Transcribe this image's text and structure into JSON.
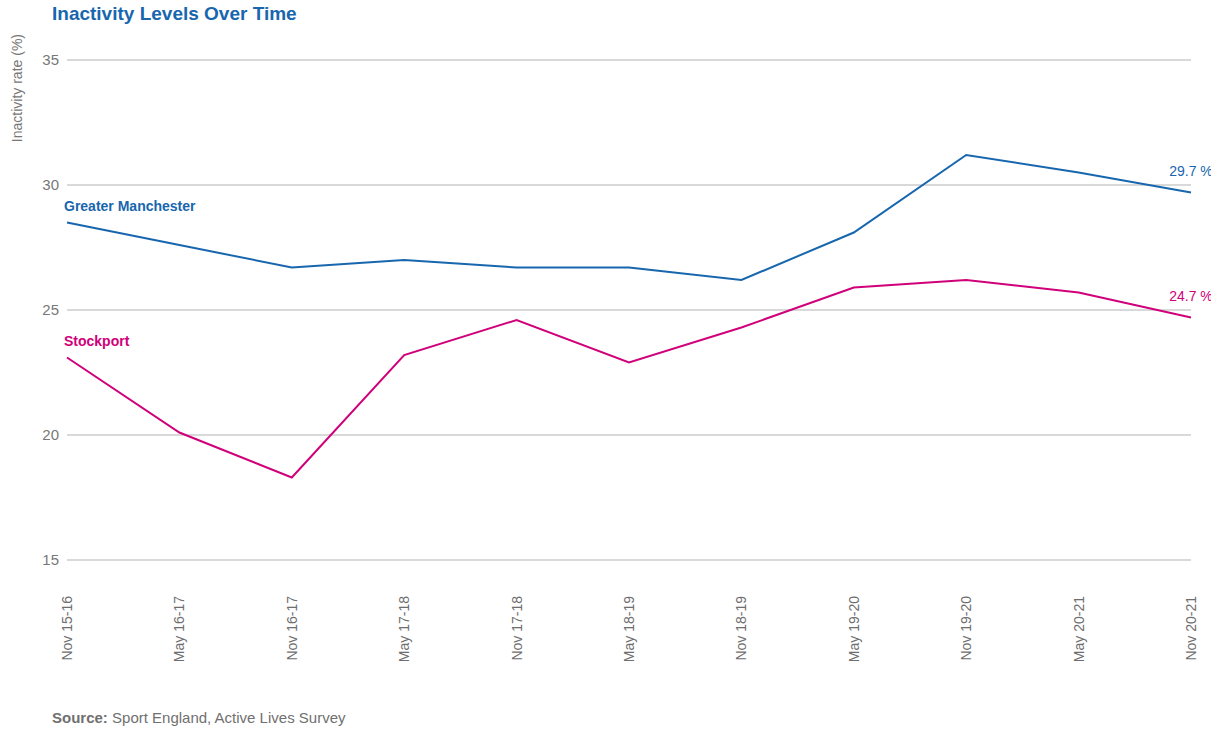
{
  "chart_data": {
    "type": "line",
    "title": "Inactivity Levels Over Time",
    "y_label": "Inactivity rate (%)",
    "source_label": "Source:",
    "source": "Sport England, Active Lives Survey",
    "categories": [
      "Nov 15-16",
      "May 16-17",
      "Nov 16-17",
      "May 17-18",
      "Nov 17-18",
      "May 18-19",
      "Nov 18-19",
      "May 19-20",
      "Nov 19-20",
      "May 20-21",
      "Nov 20-21"
    ],
    "ylim": [
      15,
      35
    ],
    "yticks": [
      15,
      20,
      25,
      30,
      35
    ],
    "grid": true,
    "series": [
      {
        "name": "Greater Manchester",
        "color": "#1766ae",
        "values": [
          28.5,
          27.6,
          26.7,
          27.0,
          26.7,
          26.7,
          26.2,
          28.1,
          31.2,
          30.5,
          29.7
        ],
        "value_labels": [
          null,
          null,
          null,
          null,
          null,
          null,
          null,
          null,
          null,
          null,
          "29.7 %"
        ]
      },
      {
        "name": "Stockport",
        "color": "#d0007a",
        "values": [
          23.1,
          20.1,
          18.3,
          23.2,
          24.6,
          22.9,
          24.3,
          25.9,
          26.2,
          25.7,
          24.7
        ],
        "value_labels": [
          null,
          null,
          null,
          null,
          null,
          null,
          null,
          null,
          null,
          null,
          "24.7 %"
        ]
      }
    ]
  }
}
